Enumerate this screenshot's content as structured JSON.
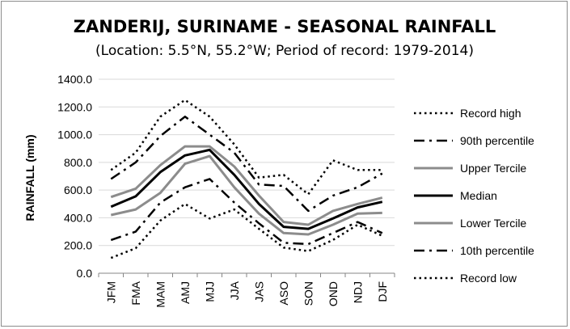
{
  "chart_data": {
    "type": "line",
    "title": "ZANDERIJ, SURINAME - SEASONAL RAINFALL",
    "subtitle": "(Location: 5.5°N, 55.2°W; Period of record: 1979-2014)",
    "xlabel": "",
    "ylabel": "RAINFALL (mm)",
    "ylim": [
      0,
      1400
    ],
    "ytick_step": 200,
    "ytick_labels": [
      "0.0",
      "200.0",
      "400.0",
      "600.0",
      "800.0",
      "1000.0",
      "1200.0",
      "1400.0"
    ],
    "categories": [
      "JFM",
      "FMA",
      "MAM",
      "AMJ",
      "MJJ",
      "JJA",
      "JAS",
      "ASO",
      "SON",
      "OND",
      "NDJ",
      "DJF"
    ],
    "grid": "horizontal",
    "legend_position": "right",
    "series": [
      {
        "name": "Record high",
        "color": "#000000",
        "style": "dotted",
        "values": [
          745,
          870,
          1130,
          1250,
          1130,
          930,
          690,
          710,
          570,
          815,
          745,
          745
        ]
      },
      {
        "name": "90th percentile",
        "color": "#000000",
        "style": "dashdot",
        "values": [
          680,
          800,
          990,
          1130,
          1000,
          870,
          640,
          630,
          450,
          560,
          620,
          720
        ]
      },
      {
        "name": "Upper Tercile",
        "color": "#8c8c8c",
        "style": "solid",
        "values": [
          550,
          610,
          780,
          915,
          915,
          770,
          560,
          370,
          350,
          450,
          500,
          545
        ]
      },
      {
        "name": "Median",
        "color": "#000000",
        "style": "solid",
        "values": [
          480,
          555,
          730,
          850,
          890,
          710,
          500,
          335,
          320,
          395,
          475,
          515
        ]
      },
      {
        "name": "Lower Tercile",
        "color": "#8c8c8c",
        "style": "solid",
        "values": [
          420,
          460,
          580,
          790,
          845,
          620,
          430,
          290,
          280,
          350,
          430,
          435
        ]
      },
      {
        "name": "10th percentile",
        "color": "#000000",
        "style": "dashdot",
        "values": [
          240,
          300,
          510,
          620,
          680,
          510,
          360,
          220,
          210,
          290,
          370,
          290
        ]
      },
      {
        "name": "Record low",
        "color": "#000000",
        "style": "dotted",
        "values": [
          110,
          180,
          380,
          500,
          395,
          460,
          320,
          185,
          160,
          240,
          350,
          270
        ]
      }
    ]
  }
}
